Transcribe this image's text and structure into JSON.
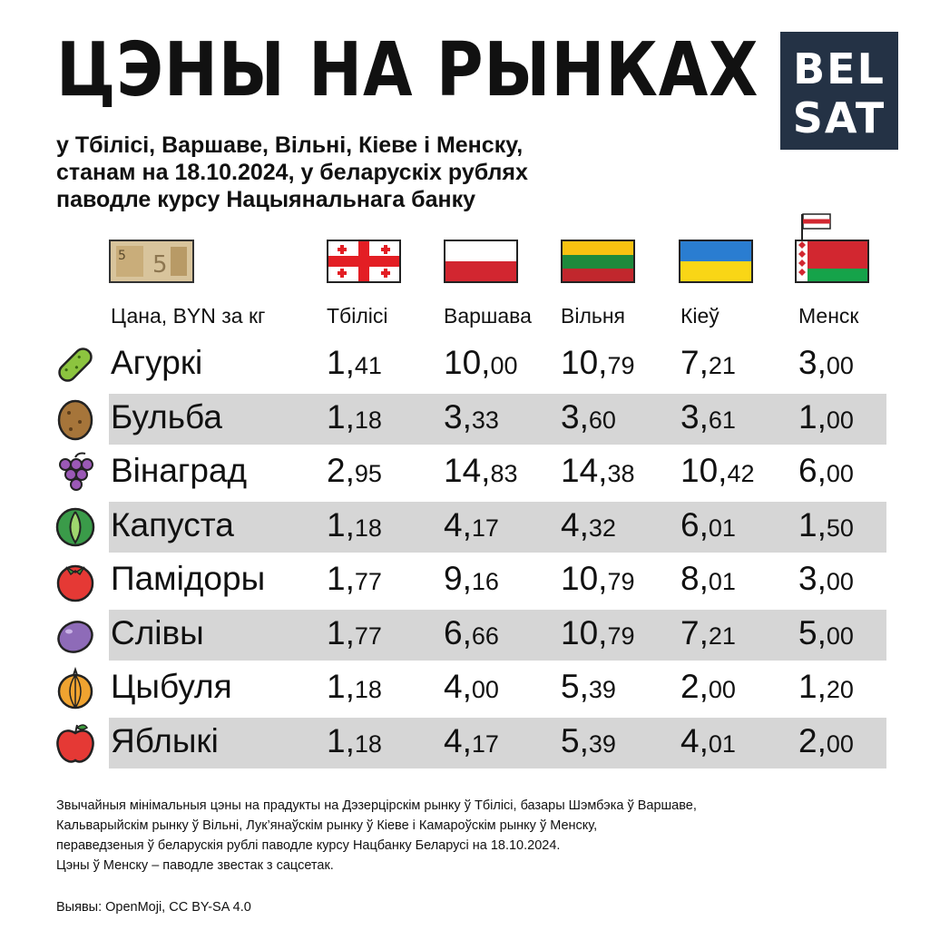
{
  "title": "ЦЭНЫ НА РЫНКАХ",
  "logo": {
    "line1": "BEL",
    "line2": "SAT"
  },
  "subtitle": [
    "у Тбілісі, Варшаве, Вільні, Кіеве і Менску,",
    "станам на 18.10.2024, у беларускіх рублях",
    "паводле курсу Нацыянальнага банку"
  ],
  "chart_data": {
    "type": "table",
    "row_header": "Цана, BYN за кг",
    "columns": [
      "Тбілісі",
      "Варшава",
      "Вільня",
      "Кіеў",
      "Менск"
    ],
    "rows": [
      {
        "name": "Агуркі",
        "icon": "cucumber-icon",
        "values": [
          "1,41",
          "10,00",
          "10,79",
          "7,21",
          "3,00"
        ]
      },
      {
        "name": "Бульба",
        "icon": "potato-icon",
        "values": [
          "1,18",
          "3,33",
          "3,60",
          "3,61",
          "1,00"
        ]
      },
      {
        "name": "Вінаград",
        "icon": "grapes-icon",
        "values": [
          "2,95",
          "14,83",
          "14,38",
          "10,42",
          "6,00"
        ]
      },
      {
        "name": "Капуста",
        "icon": "cabbage-icon",
        "values": [
          "1,18",
          "4,17",
          "4,32",
          "6,01",
          "1,50"
        ]
      },
      {
        "name": "Памідоры",
        "icon": "tomato-icon",
        "values": [
          "1,77",
          "9,16",
          "10,79",
          "8,01",
          "3,00"
        ]
      },
      {
        "name": "Слівы",
        "icon": "plum-icon",
        "values": [
          "1,77",
          "6,66",
          "10,79",
          "7,21",
          "5,00"
        ]
      },
      {
        "name": "Цыбуля",
        "icon": "onion-icon",
        "values": [
          "1,18",
          "4,00",
          "5,39",
          "2,00",
          "1,20"
        ]
      },
      {
        "name": "Яблыкі",
        "icon": "apple-icon",
        "values": [
          "1,18",
          "4,17",
          "5,39",
          "4,01",
          "2,00"
        ]
      }
    ]
  },
  "footnote": [
    "Звычайныя мінімальныя цэны на прадукты на Дэзерцірскім рынку ў Тбілісі, базары Шэмбэка ў Варшаве,",
    "Кальварыйскім рынку ў Вільні, Лук’янаўскім рынку ў Кіеве і Камароўскім рынку ў Менску,",
    "пераведзеныя ў беларускія рублі паводле курсу Нацбанку Беларусі на 18.10.2024.",
    "Цэны ў Менску – паводле звестак з сацсетак."
  ],
  "credit": "Выявы: OpenMoji, CC BY-SA 4.0",
  "colors": {
    "logo_bg": "#243245",
    "row_stripe": "#d6d6d6"
  }
}
